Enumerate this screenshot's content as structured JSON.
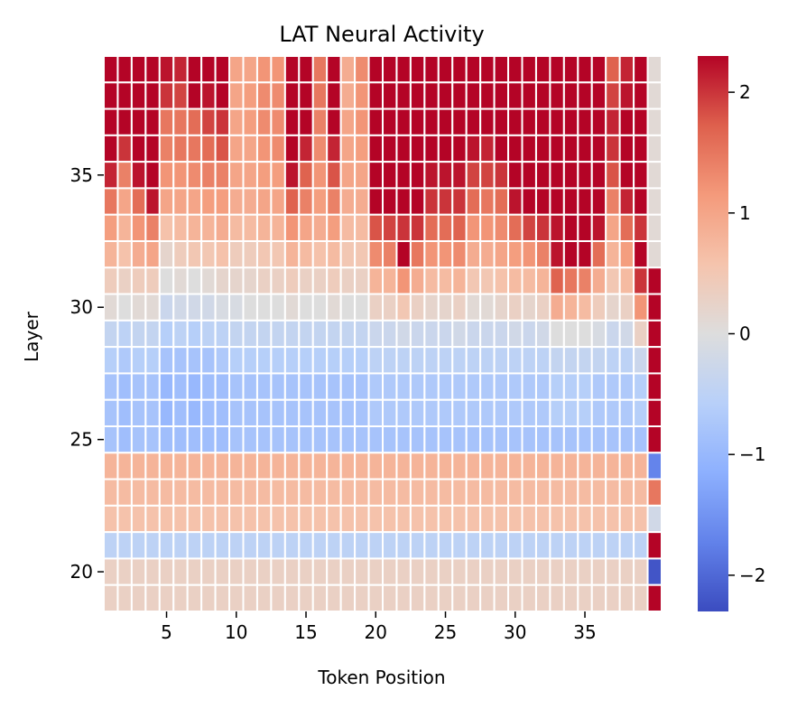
{
  "chart_data": {
    "type": "heatmap",
    "title": "LAT Neural Activity",
    "xlabel": "Token Position",
    "ylabel": "Layer",
    "x_start": 1,
    "x_end": 40,
    "y_start": 19,
    "y_end": 39,
    "x_ticks": [
      5,
      10,
      15,
      20,
      25,
      30,
      35
    ],
    "y_ticks": [
      20,
      25,
      30,
      35
    ],
    "colorbar": {
      "min": -2.3,
      "max": 2.3,
      "ticks": [
        -2,
        -1,
        0,
        1,
        2
      ],
      "tick_labels": [
        "−2",
        "−1",
        "0",
        "1",
        "2"
      ],
      "colormap": "coolwarm"
    },
    "cell_border_color": "#ffffff",
    "rows_top_to_bottom": [
      {
        "layer": 39,
        "values": [
          2.3,
          2.3,
          2.3,
          2.3,
          2.2,
          2.1,
          2.3,
          2.3,
          2.3,
          1.0,
          1.0,
          1.2,
          1.2,
          2.3,
          2.3,
          1.5,
          2.3,
          0.9,
          1.3,
          2.3,
          2.3,
          2.3,
          2.3,
          2.3,
          2.3,
          2.3,
          2.3,
          2.3,
          2.3,
          2.3,
          2.3,
          2.3,
          2.3,
          2.3,
          2.3,
          2.3,
          1.7,
          2.1,
          2.3,
          0.1
        ]
      },
      {
        "layer": 38,
        "values": [
          2.3,
          2.3,
          2.3,
          2.3,
          2.0,
          1.9,
          2.3,
          2.2,
          2.3,
          1.0,
          1.1,
          1.3,
          1.3,
          2.3,
          2.3,
          1.5,
          2.3,
          0.9,
          1.2,
          2.3,
          2.3,
          2.3,
          2.3,
          2.3,
          2.3,
          2.3,
          2.3,
          2.3,
          2.3,
          2.3,
          2.3,
          2.3,
          2.3,
          2.3,
          2.3,
          2.3,
          1.9,
          2.2,
          2.3,
          0.1
        ]
      },
      {
        "layer": 37,
        "values": [
          2.3,
          2.3,
          2.3,
          2.3,
          1.5,
          1.5,
          1.6,
          1.9,
          2.0,
          1.0,
          1.1,
          1.3,
          1.3,
          2.3,
          2.3,
          1.4,
          2.3,
          1.0,
          1.2,
          2.3,
          2.3,
          2.3,
          2.3,
          2.3,
          2.3,
          2.3,
          2.3,
          2.3,
          2.3,
          2.3,
          2.3,
          2.3,
          2.3,
          2.3,
          2.3,
          2.3,
          2.1,
          2.3,
          2.3,
          0.1
        ]
      },
      {
        "layer": 36,
        "values": [
          2.3,
          2.0,
          2.3,
          2.3,
          1.4,
          1.5,
          1.5,
          1.6,
          1.8,
          1.0,
          1.0,
          1.2,
          1.3,
          2.3,
          2.1,
          1.3,
          2.1,
          1.0,
          1.1,
          2.3,
          2.3,
          2.3,
          2.3,
          2.3,
          2.3,
          2.3,
          2.2,
          2.1,
          2.3,
          2.3,
          2.3,
          2.3,
          2.3,
          2.3,
          2.3,
          2.3,
          2.0,
          2.3,
          2.3,
          0.1
        ]
      },
      {
        "layer": 35,
        "values": [
          2.1,
          1.4,
          2.2,
          2.3,
          1.2,
          1.2,
          1.3,
          1.4,
          1.4,
          1.0,
          1.0,
          1.1,
          1.1,
          2.2,
          1.7,
          1.2,
          1.8,
          1.0,
          1.0,
          2.3,
          2.3,
          2.3,
          2.3,
          2.2,
          2.2,
          2.2,
          1.9,
          1.9,
          2.0,
          2.3,
          2.3,
          2.3,
          2.3,
          2.3,
          2.3,
          2.3,
          1.8,
          2.3,
          2.3,
          0.1
        ]
      },
      {
        "layer": 34,
        "values": [
          1.5,
          1.0,
          1.6,
          2.2,
          1.0,
          1.0,
          1.0,
          1.1,
          1.1,
          0.9,
          0.9,
          1.0,
          1.0,
          1.7,
          1.4,
          1.1,
          1.4,
          0.9,
          0.9,
          2.3,
          2.3,
          2.3,
          2.3,
          2.0,
          2.0,
          2.0,
          1.6,
          1.5,
          1.6,
          2.2,
          2.3,
          2.3,
          2.3,
          2.3,
          2.3,
          2.3,
          1.4,
          2.1,
          2.3,
          0.1
        ]
      },
      {
        "layer": 33,
        "values": [
          1.1,
          0.8,
          1.2,
          1.4,
          0.6,
          0.7,
          0.8,
          0.8,
          0.9,
          0.7,
          0.7,
          0.8,
          0.8,
          1.2,
          1.0,
          0.9,
          1.1,
          0.7,
          0.7,
          1.8,
          1.9,
          2.0,
          2.0,
          1.6,
          1.6,
          1.7,
          1.2,
          1.2,
          1.3,
          1.6,
          1.9,
          2.0,
          2.2,
          2.3,
          2.3,
          2.2,
          1.0,
          1.6,
          2.0,
          0.1
        ]
      },
      {
        "layer": 32,
        "values": [
          0.8,
          0.6,
          0.9,
          1.0,
          0.2,
          0.4,
          0.5,
          0.5,
          0.6,
          0.4,
          0.4,
          0.5,
          0.5,
          0.8,
          0.7,
          0.6,
          0.7,
          0.5,
          0.5,
          1.3,
          1.4,
          2.3,
          1.5,
          1.2,
          1.2,
          1.3,
          0.9,
          0.9,
          1.0,
          1.1,
          1.2,
          1.4,
          2.2,
          2.3,
          2.3,
          1.6,
          0.8,
          1.1,
          2.3,
          0.1
        ]
      },
      {
        "layer": 31,
        "values": [
          0.4,
          0.3,
          0.4,
          0.4,
          0.0,
          0.1,
          0.0,
          0.1,
          0.2,
          0.2,
          0.2,
          0.3,
          0.3,
          0.4,
          0.3,
          0.3,
          0.4,
          0.3,
          0.3,
          0.8,
          0.8,
          1.2,
          0.9,
          0.7,
          0.7,
          0.8,
          0.5,
          0.5,
          0.6,
          0.7,
          0.7,
          0.8,
          1.7,
          1.5,
          1.4,
          0.9,
          0.5,
          0.7,
          2.0,
          2.3
        ]
      },
      {
        "layer": 30,
        "values": [
          0.1,
          0.0,
          0.1,
          0.1,
          -0.3,
          -0.2,
          -0.2,
          -0.2,
          -0.1,
          -0.1,
          0.0,
          0.0,
          0.0,
          0.1,
          0.0,
          0.0,
          0.1,
          0.0,
          0.0,
          0.3,
          0.3,
          0.5,
          0.3,
          0.2,
          0.2,
          0.3,
          0.1,
          0.1,
          0.2,
          0.3,
          0.2,
          0.3,
          0.9,
          0.8,
          0.7,
          0.4,
          0.2,
          0.3,
          1.2,
          2.3
        ]
      },
      {
        "layer": 29,
        "values": [
          -0.4,
          -0.5,
          -0.4,
          -0.4,
          -0.6,
          -0.5,
          -0.6,
          -0.5,
          -0.5,
          -0.4,
          -0.4,
          -0.4,
          -0.4,
          -0.4,
          -0.4,
          -0.4,
          -0.4,
          -0.4,
          -0.4,
          -0.3,
          -0.3,
          -0.2,
          -0.3,
          -0.3,
          -0.3,
          -0.2,
          -0.3,
          -0.3,
          -0.3,
          -0.2,
          -0.3,
          -0.2,
          0.0,
          0.0,
          0.0,
          -0.1,
          -0.3,
          -0.2,
          0.3,
          2.3
        ]
      },
      {
        "layer": 28,
        "values": [
          -0.6,
          -0.7,
          -0.6,
          -0.6,
          -0.8,
          -0.8,
          -0.8,
          -0.8,
          -0.7,
          -0.6,
          -0.6,
          -0.6,
          -0.6,
          -0.6,
          -0.6,
          -0.6,
          -0.6,
          -0.6,
          -0.6,
          -0.5,
          -0.5,
          -0.5,
          -0.5,
          -0.5,
          -0.5,
          -0.5,
          -0.5,
          -0.5,
          -0.5,
          -0.5,
          -0.5,
          -0.5,
          -0.4,
          -0.4,
          -0.4,
          -0.4,
          -0.5,
          -0.5,
          -0.3,
          2.3
        ]
      },
      {
        "layer": 27,
        "values": [
          -0.8,
          -0.9,
          -0.8,
          -0.8,
          -1.0,
          -0.9,
          -1.0,
          -0.9,
          -0.9,
          -0.8,
          -0.8,
          -0.8,
          -0.8,
          -0.8,
          -0.8,
          -0.8,
          -0.8,
          -0.8,
          -0.8,
          -0.7,
          -0.7,
          -0.7,
          -0.7,
          -0.7,
          -0.7,
          -0.7,
          -0.7,
          -0.7,
          -0.7,
          -0.7,
          -0.7,
          -0.7,
          -0.6,
          -0.6,
          -0.6,
          -0.7,
          -0.7,
          -0.7,
          -0.6,
          2.3
        ]
      },
      {
        "layer": 26,
        "values": [
          -0.8,
          -0.9,
          -0.8,
          -0.8,
          -1.0,
          -0.9,
          -1.0,
          -0.9,
          -0.9,
          -0.8,
          -0.8,
          -0.8,
          -0.8,
          -0.8,
          -0.8,
          -0.8,
          -0.8,
          -0.8,
          -0.8,
          -0.7,
          -0.7,
          -0.7,
          -0.7,
          -0.7,
          -0.7,
          -0.7,
          -0.7,
          -0.7,
          -0.7,
          -0.7,
          -0.7,
          -0.7,
          -0.6,
          -0.6,
          -0.6,
          -0.7,
          -0.7,
          -0.7,
          -0.6,
          2.3
        ]
      },
      {
        "layer": 25,
        "values": [
          -0.8,
          -0.9,
          -0.8,
          -0.8,
          -0.9,
          -0.9,
          -0.9,
          -0.9,
          -0.9,
          -0.8,
          -0.8,
          -0.8,
          -0.8,
          -0.8,
          -0.8,
          -0.8,
          -0.8,
          -0.8,
          -0.8,
          -0.8,
          -0.8,
          -0.8,
          -0.8,
          -0.8,
          -0.8,
          -0.8,
          -0.8,
          -0.8,
          -0.8,
          -0.8,
          -0.8,
          -0.8,
          -0.8,
          -0.8,
          -0.8,
          -0.8,
          -0.8,
          -0.8,
          -0.8,
          2.3
        ]
      },
      {
        "layer": 24,
        "values": [
          0.8,
          0.8,
          0.8,
          0.8,
          0.8,
          0.8,
          0.8,
          0.8,
          0.8,
          0.8,
          0.8,
          0.8,
          0.8,
          0.8,
          0.8,
          0.8,
          0.8,
          0.8,
          0.8,
          0.8,
          0.8,
          0.8,
          0.8,
          0.8,
          0.8,
          0.8,
          0.8,
          0.8,
          0.8,
          0.8,
          0.8,
          0.8,
          0.8,
          0.8,
          0.8,
          0.8,
          0.8,
          0.8,
          0.8,
          -1.7
        ]
      },
      {
        "layer": 23,
        "values": [
          0.7,
          0.7,
          0.7,
          0.7,
          0.7,
          0.7,
          0.7,
          0.7,
          0.7,
          0.7,
          0.7,
          0.7,
          0.7,
          0.7,
          0.7,
          0.7,
          0.7,
          0.7,
          0.7,
          0.7,
          0.7,
          0.7,
          0.7,
          0.7,
          0.7,
          0.7,
          0.7,
          0.7,
          0.7,
          0.7,
          0.7,
          0.7,
          0.7,
          0.7,
          0.7,
          0.7,
          0.7,
          0.7,
          0.7,
          1.5
        ]
      },
      {
        "layer": 22,
        "values": [
          0.6,
          0.6,
          0.6,
          0.6,
          0.6,
          0.6,
          0.6,
          0.6,
          0.6,
          0.6,
          0.6,
          0.6,
          0.6,
          0.6,
          0.6,
          0.6,
          0.6,
          0.6,
          0.6,
          0.6,
          0.6,
          0.6,
          0.6,
          0.6,
          0.6,
          0.6,
          0.6,
          0.6,
          0.6,
          0.6,
          0.6,
          0.6,
          0.6,
          0.6,
          0.6,
          0.6,
          0.6,
          0.6,
          0.6,
          -0.2
        ]
      },
      {
        "layer": 21,
        "values": [
          -0.5,
          -0.5,
          -0.5,
          -0.5,
          -0.5,
          -0.5,
          -0.5,
          -0.5,
          -0.5,
          -0.5,
          -0.5,
          -0.5,
          -0.5,
          -0.5,
          -0.5,
          -0.5,
          -0.5,
          -0.5,
          -0.5,
          -0.5,
          -0.5,
          -0.5,
          -0.5,
          -0.5,
          -0.5,
          -0.5,
          -0.5,
          -0.5,
          -0.5,
          -0.5,
          -0.5,
          -0.5,
          -0.5,
          -0.5,
          -0.5,
          -0.5,
          -0.5,
          -0.5,
          -0.5,
          2.3
        ]
      },
      {
        "layer": 20,
        "values": [
          0.3,
          0.3,
          0.3,
          0.3,
          0.3,
          0.3,
          0.3,
          0.3,
          0.3,
          0.3,
          0.3,
          0.3,
          0.3,
          0.3,
          0.3,
          0.3,
          0.3,
          0.3,
          0.3,
          0.3,
          0.3,
          0.3,
          0.3,
          0.3,
          0.3,
          0.3,
          0.3,
          0.3,
          0.3,
          0.3,
          0.3,
          0.3,
          0.3,
          0.3,
          0.3,
          0.3,
          0.3,
          0.3,
          0.3,
          -2.2
        ]
      },
      {
        "layer": 19,
        "values": [
          0.3,
          0.3,
          0.3,
          0.3,
          0.3,
          0.3,
          0.3,
          0.3,
          0.3,
          0.3,
          0.3,
          0.3,
          0.3,
          0.3,
          0.3,
          0.3,
          0.3,
          0.3,
          0.3,
          0.3,
          0.3,
          0.3,
          0.3,
          0.3,
          0.3,
          0.3,
          0.3,
          0.3,
          0.3,
          0.3,
          0.3,
          0.3,
          0.3,
          0.3,
          0.3,
          0.3,
          0.3,
          0.3,
          0.3,
          2.3
        ]
      }
    ]
  }
}
